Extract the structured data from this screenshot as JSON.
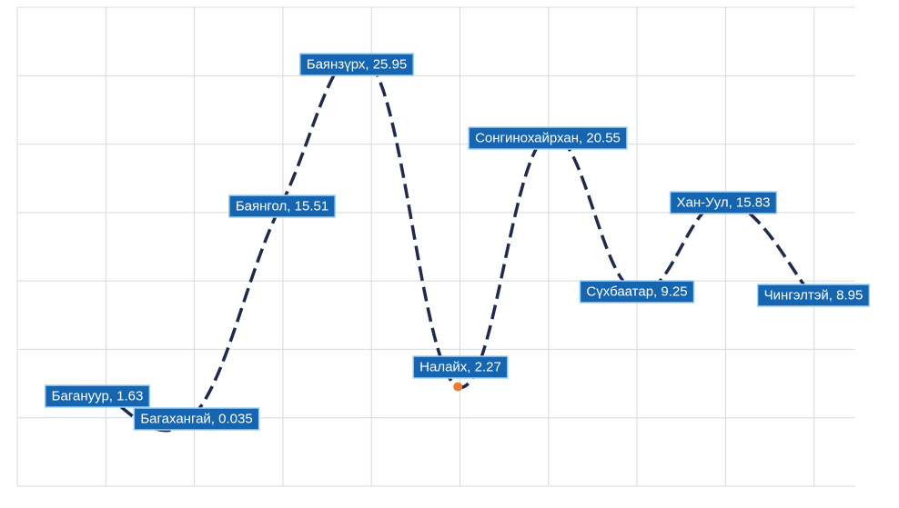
{
  "chart_data": {
    "type": "line",
    "title": "",
    "xlabel": "",
    "ylabel": "",
    "categories": [
      "Багануур",
      "Багахангай",
      "Баянгол",
      "Баянзүрх",
      "Налайх",
      "Сонгинохайрхан",
      "Сүхбаатар",
      "Хан-Уул",
      "Чингэлтэй"
    ],
    "series": [
      {
        "values": [
          1.63,
          0.035,
          15.51,
          25.95,
          2.27,
          20.55,
          9.25,
          15.83,
          8.95
        ]
      }
    ],
    "data_labels": [
      "Багануур, 1.63",
      "Багахангай, 0.035",
      "Баянгол, 15.51",
      "Баянзүрх, 25.95",
      "Налайх, 2.27",
      "Сонгинохайрхан, 20.55",
      "Сүхбаатар, 9.25",
      "Хан-Уул, 15.83",
      "Чингэлтэй, 8.95"
    ],
    "ylim": [
      -5,
      30
    ],
    "grid": true,
    "legend": "none",
    "smooth": true,
    "highlighted_point": "Налайх",
    "colors": {
      "line": "#1f2a4d",
      "grid": "#d9d9d9",
      "label_bg": "#1565b0",
      "label_border": "#9fd0f3",
      "label_text": "#ffffff",
      "marker": "#ed7d31"
    }
  }
}
